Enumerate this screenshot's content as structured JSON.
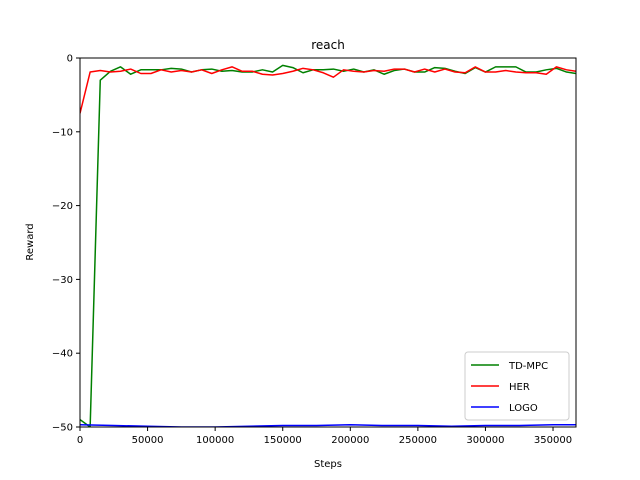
{
  "chart_data": {
    "type": "line",
    "title": "reach",
    "xlabel": "Steps",
    "ylabel": "Reward",
    "xlim": [
      0,
      367000
    ],
    "ylim": [
      -50,
      0
    ],
    "xticks": [
      0,
      50000,
      100000,
      150000,
      200000,
      250000,
      300000,
      350000
    ],
    "xtick_labels": [
      "0",
      "50000",
      "100000",
      "150000",
      "200000",
      "250000",
      "300000",
      "350000"
    ],
    "yticks": [
      0,
      -10,
      -20,
      -30,
      -40,
      -50
    ],
    "ytick_labels": [
      "0",
      "−10",
      "−20",
      "−30",
      "−40",
      "−50"
    ],
    "grid": false,
    "legend_position": "lower-right",
    "colors": {
      "TD-MPC": "#008000",
      "HER": "#ff0000",
      "LOGO": "#0000ff"
    },
    "series": [
      {
        "name": "TD-MPC",
        "x": [
          0,
          7500,
          15000,
          22500,
          30000,
          37500,
          45000,
          52500,
          60000,
          67500,
          75000,
          82500,
          90000,
          97500,
          105000,
          112500,
          120000,
          127500,
          135000,
          142500,
          150000,
          157500,
          165000,
          172500,
          180000,
          187500,
          195000,
          202500,
          210000,
          217500,
          225000,
          232500,
          240000,
          247500,
          255000,
          262500,
          270000,
          277500,
          285000,
          292500,
          300000,
          307500,
          315000,
          322500,
          330000,
          337500,
          345000,
          352500,
          360000,
          367000
        ],
        "y": [
          -49,
          -50,
          -3,
          -1.8,
          -1.2,
          -2.2,
          -1.6,
          -1.6,
          -1.6,
          -1.4,
          -1.5,
          -1.9,
          -1.6,
          -1.5,
          -1.8,
          -1.7,
          -1.9,
          -1.9,
          -1.6,
          -1.9,
          -1.0,
          -1.3,
          -2.0,
          -1.6,
          -1.6,
          -1.5,
          -1.8,
          -1.5,
          -1.9,
          -1.6,
          -2.2,
          -1.7,
          -1.5,
          -1.9,
          -1.9,
          -1.3,
          -1.4,
          -1.8,
          -2.1,
          -1.3,
          -1.9,
          -1.2,
          -1.2,
          -1.2,
          -1.9,
          -1.9,
          -1.6,
          -1.4,
          -1.9,
          -2.1
        ]
      },
      {
        "name": "HER",
        "x": [
          0,
          7500,
          15000,
          22500,
          30000,
          37500,
          45000,
          52500,
          60000,
          67500,
          75000,
          82500,
          90000,
          97500,
          105000,
          112500,
          120000,
          127500,
          135000,
          142500,
          150000,
          157500,
          165000,
          172500,
          180000,
          187500,
          195000,
          202500,
          210000,
          217500,
          225000,
          232500,
          240000,
          247500,
          255000,
          262500,
          270000,
          277500,
          285000,
          292500,
          300000,
          307500,
          315000,
          322500,
          330000,
          337500,
          345000,
          352500,
          360000,
          367000
        ],
        "y": [
          -7.5,
          -1.9,
          -1.7,
          -1.9,
          -1.8,
          -1.5,
          -2.1,
          -2.1,
          -1.6,
          -1.9,
          -1.7,
          -1.9,
          -1.6,
          -2.1,
          -1.6,
          -1.2,
          -1.8,
          -1.8,
          -2.2,
          -2.3,
          -2.1,
          -1.8,
          -1.4,
          -1.6,
          -2.0,
          -2.6,
          -1.6,
          -1.8,
          -1.9,
          -1.7,
          -1.8,
          -1.5,
          -1.5,
          -1.9,
          -1.5,
          -1.9,
          -1.5,
          -1.9,
          -2.0,
          -1.2,
          -1.9,
          -1.9,
          -1.7,
          -1.9,
          -2.0,
          -2.0,
          -2.2,
          -1.2,
          -1.6,
          -1.8
        ]
      },
      {
        "name": "LOGO",
        "x": [
          0,
          25000,
          50000,
          75000,
          100000,
          125000,
          150000,
          175000,
          200000,
          225000,
          250000,
          275000,
          300000,
          325000,
          350000,
          367000
        ],
        "y": [
          -49.7,
          -49.8,
          -49.9,
          -50.0,
          -50.0,
          -49.9,
          -49.8,
          -49.8,
          -49.7,
          -49.8,
          -49.8,
          -49.9,
          -49.8,
          -49.8,
          -49.7,
          -49.7
        ]
      }
    ]
  }
}
